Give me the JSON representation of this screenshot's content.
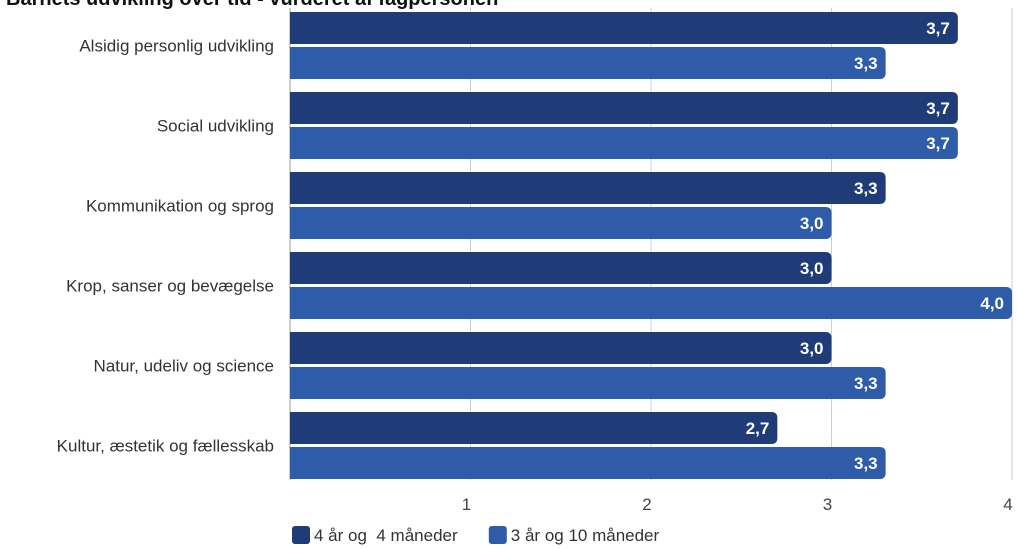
{
  "chart_data": {
    "type": "bar",
    "orientation": "horizontal",
    "title": "Barnets udvikling over tid - vurderet af fagpersonen",
    "categories": [
      "Alsidig personlig udvikling",
      "Social udvikling",
      "Kommunikation og sprog",
      "Krop, sanser og bevægelse",
      "Natur, udeliv og science",
      "Kultur, æstetik og fællesskab"
    ],
    "series": [
      {
        "name": "4 år og  4 måneder",
        "values": [
          3.7,
          3.7,
          3.3,
          3.0,
          3.0,
          2.7
        ],
        "labels": [
          "3,7",
          "3,7",
          "3,3",
          "3,0",
          "3,0",
          "2,7"
        ],
        "color": "#1f3c78"
      },
      {
        "name": "3 år og 10 måneder",
        "values": [
          3.3,
          3.7,
          3.0,
          4.0,
          3.3,
          3.3
        ],
        "labels": [
          "3,3",
          "3,7",
          "3,0",
          "4,0",
          "3,3",
          "3,3"
        ],
        "color": "#2e5ca8"
      }
    ],
    "xlim": [
      0,
      4
    ],
    "xticks": [
      1,
      2,
      3,
      4
    ],
    "xtick_labels": [
      "1",
      "2",
      "3",
      "4"
    ],
    "grid": true,
    "legend_position": "bottom-left"
  }
}
